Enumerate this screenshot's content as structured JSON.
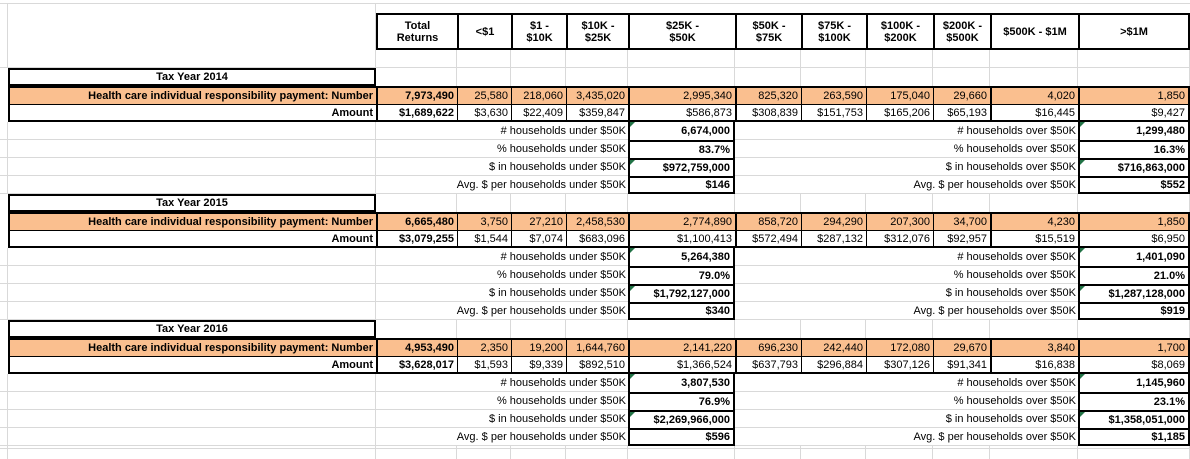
{
  "sheet": {
    "columns": [
      "Total\nReturns",
      "<$1",
      "$1 -\n$10K",
      "$10K -\n$25K",
      "$25K -\n$50K",
      "$50K -\n$75K",
      "$75K -\n$100K",
      "$100K -\n$200K",
      "$200K -\n$500K",
      "$500K - $1M",
      ">$1M"
    ],
    "row_labels": {
      "number": "Health care individual responsibility payment: Number",
      "amount": "Amount",
      "under": [
        "# households under $50K",
        "% households under $50K",
        "$ in households under $50K",
        "Avg. $ per households under $50K"
      ],
      "over": [
        "# households over $50K",
        "% households over $50K",
        "$ in households over $50K",
        "Avg. $ per households over $50K"
      ]
    },
    "sections": [
      {
        "title": "Tax Year 2014",
        "number": [
          "7,973,490",
          "25,580",
          "218,060",
          "3,435,020",
          "2,995,340",
          "825,320",
          "263,590",
          "175,040",
          "29,660",
          "4,020",
          "1,850"
        ],
        "amount": [
          "$1,689,622",
          "$3,630",
          "$22,409",
          "$359,847",
          "$586,873",
          "$308,839",
          "$151,753",
          "$165,206",
          "$65,193",
          "$16,445",
          "$9,427"
        ],
        "under_values": [
          "6,674,000",
          "83.7%",
          "$972,759,000",
          "$146"
        ],
        "over_values": [
          "1,299,480",
          "16.3%",
          "$716,863,000",
          "$552"
        ]
      },
      {
        "title": "Tax Year 2015",
        "number": [
          "6,665,480",
          "3,750",
          "27,210",
          "2,458,530",
          "2,774,890",
          "858,720",
          "294,290",
          "207,300",
          "34,700",
          "4,230",
          "1,850"
        ],
        "amount": [
          "$3,079,255",
          "$1,544",
          "$7,074",
          "$683,096",
          "$1,100,413",
          "$572,494",
          "$287,132",
          "$312,076",
          "$92,957",
          "$15,519",
          "$6,950"
        ],
        "under_values": [
          "5,264,380",
          "79.0%",
          "$1,792,127,000",
          "$340"
        ],
        "over_values": [
          "1,401,090",
          "21.0%",
          "$1,287,128,000",
          "$919"
        ]
      },
      {
        "title": "Tax Year 2016",
        "number": [
          "4,953,490",
          "2,350",
          "19,200",
          "1,644,760",
          "2,141,220",
          "696,230",
          "242,440",
          "172,080",
          "29,670",
          "3,840",
          "1,700"
        ],
        "amount": [
          "$3,628,017",
          "$1,593",
          "$9,339",
          "$892,510",
          "$1,366,524",
          "$637,793",
          "$296,884",
          "$307,126",
          "$91,341",
          "$16,838",
          "$8,069"
        ],
        "under_values": [
          "3,807,530",
          "76.9%",
          "$2,269,966,000",
          "$596"
        ],
        "over_values": [
          "1,145,960",
          "23.1%",
          "$1,358,051,000",
          "$1,185"
        ]
      }
    ]
  },
  "colors": {
    "highlight": "#FABF8F",
    "border": "#000000",
    "gridline": "#D9D9D9",
    "error_indicator": "#217346"
  }
}
